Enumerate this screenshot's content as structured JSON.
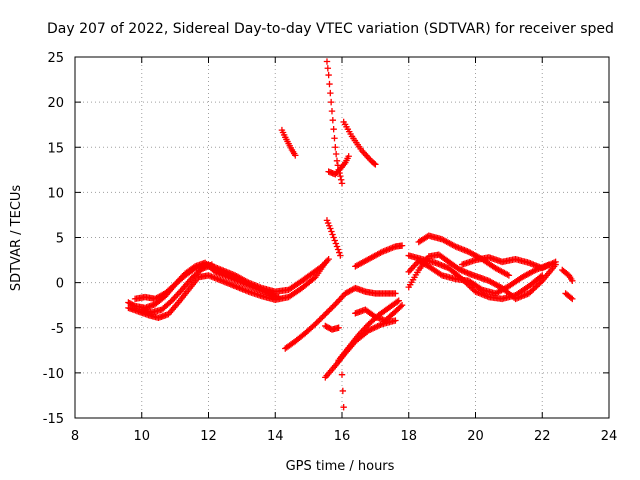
{
  "chart_data": {
    "type": "scatter",
    "title": "Day 207 of 2022, Sidereal Day-to-day VTEC variation (SDTVAR) for receiver sped",
    "xlabel": "GPS time / hours",
    "ylabel": "SDTVAR / TECUs",
    "xlim": [
      8,
      24
    ],
    "ylim": [
      -15,
      25
    ],
    "xticks": [
      8,
      10,
      12,
      14,
      16,
      18,
      20,
      22,
      24
    ],
    "yticks": [
      -15,
      -10,
      -5,
      0,
      5,
      10,
      15,
      20,
      25
    ],
    "grid": true,
    "marker": "plus",
    "color": "#ff0000",
    "series": [
      {
        "name": "track-01",
        "x": [
          9.6,
          9.9,
          10.2,
          10.5,
          10.8,
          11.1,
          11.4,
          11.7,
          12.0,
          12.4,
          12.8,
          13.2,
          13.6,
          14.0,
          14.4,
          14.8,
          15.2,
          15.5
        ],
        "y": [
          -2.8,
          -3.2,
          -3.6,
          -3.9,
          -3.5,
          -2.2,
          -0.8,
          0.6,
          0.8,
          0.2,
          -0.4,
          -1.0,
          -1.5,
          -1.9,
          -1.6,
          -0.6,
          0.6,
          2.2
        ]
      },
      {
        "name": "track-02",
        "x": [
          9.6,
          9.8,
          10.1,
          10.4,
          10.7,
          11.0,
          11.3,
          11.6,
          11.9,
          12.2,
          12.6,
          13.0,
          13.4,
          13.8,
          14.1
        ],
        "y": [
          -2.2,
          -2.6,
          -2.8,
          -2.4,
          -1.5,
          -0.2,
          1.0,
          1.8,
          2.2,
          1.2,
          0.6,
          0.0,
          -0.6,
          -1.2,
          -1.6
        ]
      },
      {
        "name": "track-03",
        "x": [
          9.8,
          10.1,
          10.4,
          10.7,
          11.0,
          11.3,
          11.6,
          12.0,
          12.4,
          12.8,
          13.2,
          13.6,
          14.0,
          14.4,
          14.8,
          15.1,
          15.4,
          15.6
        ],
        "y": [
          -1.8,
          -1.6,
          -1.8,
          -1.2,
          -0.2,
          0.8,
          1.6,
          2.0,
          1.4,
          0.8,
          0.0,
          -0.6,
          -1.0,
          -0.8,
          0.2,
          1.0,
          1.8,
          2.6
        ]
      },
      {
        "name": "track-04",
        "x": [
          10.0,
          10.3,
          10.6,
          10.9,
          11.2,
          11.5,
          11.8,
          12.1
        ],
        "y": [
          -3.0,
          -3.3,
          -3.0,
          -2.0,
          -0.8,
          0.5,
          1.5,
          2.0
        ]
      },
      {
        "name": "track-05",
        "x": [
          14.2,
          14.3,
          14.4,
          14.5,
          14.6
        ],
        "y": [
          16.9,
          16.1,
          15.4,
          14.7,
          14.1
        ]
      },
      {
        "name": "track-06",
        "x": [
          15.55,
          15.6,
          15.65,
          15.7,
          15.75,
          15.8,
          15.85,
          15.9,
          15.95,
          16.0
        ],
        "y": [
          24.5,
          23.0,
          21.0,
          19.0,
          17.0,
          15.0,
          13.5,
          12.5,
          11.8,
          11.0
        ]
      },
      {
        "name": "track-07",
        "x": [
          16.05,
          16.3,
          16.6,
          16.9,
          17.0
        ],
        "y": [
          17.8,
          16.2,
          14.6,
          13.4,
          13.1
        ]
      },
      {
        "name": "track-08",
        "x": [
          15.6,
          15.8,
          15.95,
          16.1,
          16.2
        ],
        "y": [
          12.3,
          12.0,
          12.6,
          13.3,
          14.0
        ]
      },
      {
        "name": "track-09",
        "x": [
          15.55,
          15.65,
          15.75,
          15.85,
          15.95
        ],
        "y": [
          6.9,
          6.0,
          5.0,
          4.0,
          3.0
        ]
      },
      {
        "name": "track-10",
        "x": [
          14.3,
          14.6,
          14.9,
          15.2,
          15.5,
          15.8,
          16.1,
          16.4,
          16.7,
          17.0,
          17.3,
          17.6
        ],
        "y": [
          -7.3,
          -6.5,
          -5.6,
          -4.6,
          -3.5,
          -2.4,
          -1.2,
          -0.6,
          -1.0,
          -1.2,
          -1.2,
          -1.2
        ]
      },
      {
        "name": "track-11",
        "x": [
          15.5,
          15.8,
          16.1,
          16.4,
          16.8,
          17.2,
          17.6
        ],
        "y": [
          -10.5,
          -9.2,
          -7.8,
          -6.5,
          -5.3,
          -4.6,
          -4.2
        ]
      },
      {
        "name": "track-12",
        "x": [
          15.9,
          16.2,
          16.5,
          16.8,
          17.1,
          17.4,
          17.7
        ],
        "y": [
          -8.6,
          -7.2,
          -5.8,
          -4.6,
          -3.6,
          -2.8,
          -2.0
        ]
      },
      {
        "name": "track-13",
        "x": [
          16.4,
          16.7,
          17.0,
          17.3,
          17.6,
          17.8
        ],
        "y": [
          -3.4,
          -3.0,
          -3.8,
          -4.2,
          -3.2,
          -2.5
        ]
      },
      {
        "name": "track-14",
        "x": [
          15.5,
          15.7,
          15.9
        ],
        "y": [
          -4.8,
          -5.2,
          -5.0
        ]
      },
      {
        "name": "track-15",
        "x": [
          16.0,
          16.05
        ],
        "y": [
          -10.2,
          -13.8
        ]
      },
      {
        "name": "track-16",
        "x": [
          16.4,
          16.8,
          17.2,
          17.6,
          17.8
        ],
        "y": [
          1.8,
          2.6,
          3.4,
          4.0,
          4.1
        ]
      },
      {
        "name": "track-17",
        "x": [
          18.0,
          18.3,
          18.6,
          18.9,
          19.2,
          19.5,
          19.8,
          20.1,
          20.4,
          20.8,
          21.2,
          21.6,
          22.0,
          22.4
        ],
        "y": [
          -0.5,
          1.4,
          2.9,
          3.1,
          2.3,
          1.5,
          1.0,
          0.6,
          0.2,
          -0.6,
          -1.8,
          -1.2,
          0.2,
          2.0
        ]
      },
      {
        "name": "track-18",
        "x": [
          18.0,
          18.3,
          18.6,
          19.0,
          19.4,
          19.8,
          20.2,
          20.6,
          21.0,
          21.4,
          21.8,
          22.2
        ],
        "y": [
          1.2,
          2.4,
          1.8,
          0.8,
          0.4,
          0.2,
          -0.8,
          -1.2,
          -0.4,
          0.6,
          1.4,
          2.0
        ]
      },
      {
        "name": "track-19",
        "x": [
          18.3,
          18.6,
          19.0,
          19.4,
          19.8,
          20.2,
          20.6,
          21.0
        ],
        "y": [
          4.5,
          5.2,
          4.8,
          4.0,
          3.4,
          2.6,
          1.6,
          0.8
        ]
      },
      {
        "name": "track-20",
        "x": [
          18.0,
          18.4,
          18.8,
          19.2,
          19.6,
          20.0,
          20.4,
          20.8,
          21.2,
          21.6,
          22.0
        ],
        "y": [
          3.0,
          2.6,
          2.2,
          1.6,
          0.4,
          -1.0,
          -1.6,
          -1.8,
          -1.4,
          -0.4,
          0.8
        ]
      },
      {
        "name": "track-21",
        "x": [
          19.6,
          20.0,
          20.4,
          20.8,
          21.2,
          21.6,
          22.0,
          22.4
        ],
        "y": [
          2.0,
          2.5,
          2.8,
          2.3,
          2.6,
          2.2,
          1.6,
          2.3
        ]
      },
      {
        "name": "track-22",
        "x": [
          22.6,
          22.8,
          22.9
        ],
        "y": [
          1.4,
          0.8,
          0.2
        ]
      },
      {
        "name": "track-23",
        "x": [
          22.7,
          22.9
        ],
        "y": [
          -1.2,
          -1.8
        ]
      }
    ]
  }
}
